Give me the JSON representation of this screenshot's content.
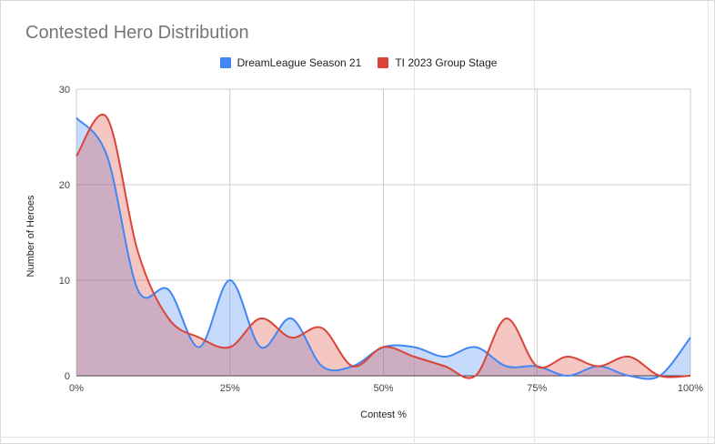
{
  "chart_data": {
    "type": "area",
    "title": "Contested Hero Distribution",
    "xlabel": "Contest %",
    "ylabel": "Number of Heroes",
    "x_ticks": [
      "0%",
      "25%",
      "50%",
      "75%",
      "100%"
    ],
    "y_ticks": [
      "0",
      "10",
      "20",
      "30"
    ],
    "xlim": [
      0,
      100
    ],
    "ylim": [
      0,
      30
    ],
    "grid": true,
    "legend": "top",
    "x": [
      0,
      5,
      10,
      15,
      20,
      25,
      30,
      35,
      40,
      45,
      50,
      55,
      60,
      65,
      70,
      75,
      80,
      85,
      90,
      95,
      100
    ],
    "series": [
      {
        "name": "DreamLeague Season 21",
        "color": "#4285f4",
        "values": [
          27,
          23,
          9,
          9,
          3,
          10,
          3,
          6,
          1,
          1,
          3,
          3,
          2,
          3,
          1,
          1,
          0,
          1,
          0,
          0,
          4
        ]
      },
      {
        "name": "TI 2023 Group Stage",
        "color": "#db4437",
        "values": [
          23,
          27,
          13,
          6,
          4,
          3,
          6,
          4,
          5,
          1,
          3,
          2,
          1,
          0,
          6,
          1,
          2,
          1,
          2,
          0,
          0
        ]
      }
    ]
  }
}
